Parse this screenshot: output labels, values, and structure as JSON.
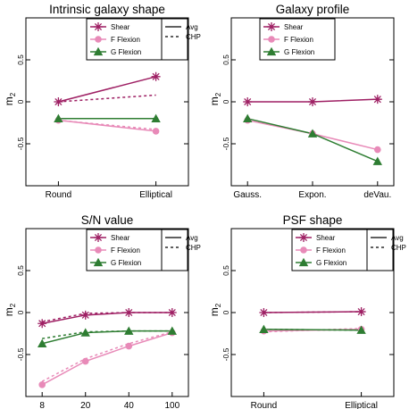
{
  "colors": {
    "shear": "#9e1f63",
    "f_flexion": "#e88ab8",
    "g_flexion": "#2e7d32",
    "axis": "#000000"
  },
  "legend": {
    "entries": [
      "Shear",
      "F Flexion",
      "G Flexion"
    ],
    "line_styles": [
      "Avg",
      "CHP"
    ]
  },
  "chart_data": [
    {
      "type": "line",
      "title": "Intrinsic galaxy shape",
      "ylabel": "m2",
      "categories": [
        "Round",
        "Elliptical"
      ],
      "ylim": [
        -1.0,
        1.0
      ],
      "yticks": [
        "-0.5",
        "0",
        "0.5"
      ],
      "legend_position": "top",
      "series": [
        {
          "name": "Shear",
          "style": "Avg",
          "values": [
            0.0,
            0.3
          ]
        },
        {
          "name": "Shear",
          "style": "CHP",
          "values": [
            0.0,
            0.08
          ]
        },
        {
          "name": "F Flexion",
          "style": "Avg",
          "values": [
            -0.22,
            -0.35
          ]
        },
        {
          "name": "F Flexion",
          "style": "CHP",
          "values": [
            -0.22,
            -0.33
          ]
        },
        {
          "name": "G Flexion",
          "style": "Avg",
          "values": [
            -0.2,
            -0.2
          ]
        },
        {
          "name": "G Flexion",
          "style": "CHP",
          "values": [
            -0.2,
            -0.2
          ]
        }
      ]
    },
    {
      "type": "line",
      "title": "Galaxy profile",
      "ylabel": "m2",
      "categories": [
        "Gauss.",
        "Expon.",
        "deVau."
      ],
      "ylim": [
        -1.0,
        1.0
      ],
      "yticks": [
        "-0.5",
        "0",
        "0.5"
      ],
      "legend_position": "none",
      "series": [
        {
          "name": "Shear",
          "style": "Avg",
          "values": [
            0.0,
            0.0,
            0.03
          ]
        },
        {
          "name": "F Flexion",
          "style": "Avg",
          "values": [
            -0.22,
            -0.38,
            -0.57
          ]
        },
        {
          "name": "G Flexion",
          "style": "Avg",
          "values": [
            -0.2,
            -0.38,
            -0.71
          ]
        }
      ]
    },
    {
      "type": "line",
      "title": "S/N value",
      "ylabel": "m2",
      "categories": [
        "8",
        "20",
        "40",
        "100"
      ],
      "ylim": [
        -1.0,
        1.0
      ],
      "yticks": [
        "-0.5",
        "0",
        "0.5"
      ],
      "legend_position": "top",
      "series": [
        {
          "name": "Shear",
          "style": "Avg",
          "values": [
            -0.13,
            -0.03,
            0.0,
            0.0
          ]
        },
        {
          "name": "Shear",
          "style": "CHP",
          "values": [
            -0.11,
            -0.01,
            0.0,
            0.0
          ]
        },
        {
          "name": "F Flexion",
          "style": "Avg",
          "values": [
            -0.86,
            -0.58,
            -0.4,
            -0.24
          ]
        },
        {
          "name": "F Flexion",
          "style": "CHP",
          "values": [
            -0.82,
            -0.55,
            -0.37,
            -0.23
          ]
        },
        {
          "name": "G Flexion",
          "style": "Avg",
          "values": [
            -0.37,
            -0.24,
            -0.22,
            -0.22
          ]
        },
        {
          "name": "G Flexion",
          "style": "CHP",
          "values": [
            -0.31,
            -0.23,
            -0.22,
            -0.22
          ]
        }
      ]
    },
    {
      "type": "line",
      "title": "PSF shape",
      "ylabel": "m2",
      "categories": [
        "Round",
        "Elliptical"
      ],
      "ylim": [
        -1.0,
        1.0
      ],
      "yticks": [
        "-0.5",
        "0",
        "0.5"
      ],
      "legend_position": "top",
      "series": [
        {
          "name": "Shear",
          "style": "Avg",
          "values": [
            0.0,
            0.01
          ]
        },
        {
          "name": "Shear",
          "style": "CHP",
          "values": [
            0.0,
            0.01
          ]
        },
        {
          "name": "F Flexion",
          "style": "Avg",
          "values": [
            -0.22,
            -0.2
          ]
        },
        {
          "name": "F Flexion",
          "style": "CHP",
          "values": [
            -0.23,
            -0.19
          ]
        },
        {
          "name": "G Flexion",
          "style": "Avg",
          "values": [
            -0.2,
            -0.21
          ]
        },
        {
          "name": "G Flexion",
          "style": "CHP",
          "values": [
            -0.2,
            -0.21
          ]
        }
      ]
    }
  ]
}
